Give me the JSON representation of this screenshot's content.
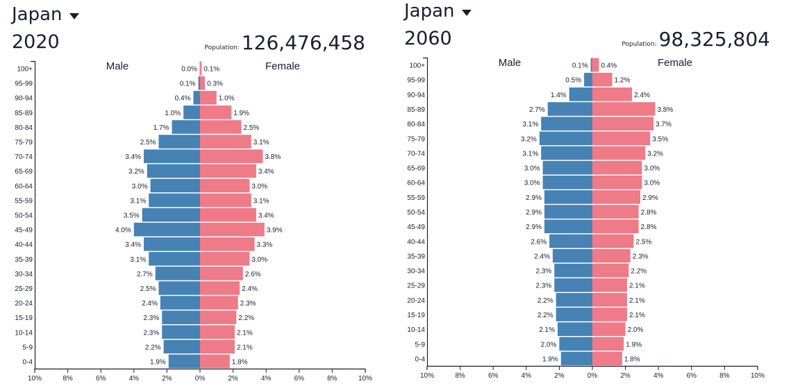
{
  "colors": {
    "male": "#4682b4",
    "female": "#ef7a88",
    "text": "#1b1d33",
    "axis": "#1b1d33"
  },
  "panels": [
    {
      "country": "Japan",
      "year": "2020",
      "population_label": "Population:",
      "population_value": "126,476,458",
      "male_label": "Male",
      "female_label": "Female"
    },
    {
      "country": "Japan",
      "year": "2060",
      "population_label": "Population:",
      "population_value": "98,325,804",
      "male_label": "Male",
      "female_label": "Female"
    }
  ],
  "chart_data": [
    {
      "type": "bar",
      "title": "Japan 2020",
      "subtitle": "Population: 126,476,458",
      "orientation": "horizontal-diverging",
      "categories": [
        "100+",
        "95-99",
        "90-94",
        "85-89",
        "80-84",
        "75-79",
        "70-74",
        "65-69",
        "60-64",
        "55-59",
        "50-54",
        "45-49",
        "40-44",
        "35-39",
        "30-34",
        "25-29",
        "20-24",
        "15-19",
        "10-14",
        "5-9",
        "0-4"
      ],
      "series": [
        {
          "name": "Male",
          "values": [
            0.0,
            0.1,
            0.4,
            1.0,
            1.7,
            2.5,
            3.4,
            3.2,
            3.0,
            3.1,
            3.5,
            4.0,
            3.4,
            3.1,
            2.7,
            2.5,
            2.4,
            2.3,
            2.3,
            2.2,
            1.9
          ],
          "labels": [
            "0.0%",
            "0.1%",
            "0.4%",
            "1.0%",
            "1.7%",
            "2.5%",
            "3.4%",
            "3.2%",
            "3.0%",
            "3.1%",
            "3.5%",
            "4.0%",
            "3.4%",
            "3.1%",
            "2.7%",
            "2.5%",
            "2.4%",
            "2.3%",
            "2.3%",
            "2.2%",
            "1.9%"
          ]
        },
        {
          "name": "Female",
          "values": [
            0.1,
            0.3,
            1.0,
            1.9,
            2.5,
            3.1,
            3.8,
            3.4,
            3.0,
            3.1,
            3.4,
            3.9,
            3.3,
            3.0,
            2.6,
            2.4,
            2.3,
            2.2,
            2.1,
            2.1,
            1.8
          ],
          "labels": [
            "0.1%",
            "0.3%",
            "1.0%",
            "1.9%",
            "2.5%",
            "3.1%",
            "3.8%",
            "3.4%",
            "3.0%",
            "3.1%",
            "3.4%",
            "3.9%",
            "3.3%",
            "3.0%",
            "2.6%",
            "2.4%",
            "2.3%",
            "2.2%",
            "2.1%",
            "2.1%",
            "1.8%"
          ]
        }
      ],
      "xlabel": "",
      "ylabel": "",
      "xlim": [
        -10,
        10
      ],
      "xticks": [
        -10,
        -8,
        -6,
        -4,
        -2,
        0,
        2,
        4,
        6,
        8,
        10
      ],
      "xtick_labels": [
        "10%",
        "8%",
        "6%",
        "4%",
        "2%",
        "0%",
        "2%",
        "4%",
        "6%",
        "8%",
        "10%"
      ],
      "grid": false,
      "legend": "top (Male left, Female right)"
    },
    {
      "type": "bar",
      "title": "Japan 2060",
      "subtitle": "Population: 98,325,804",
      "orientation": "horizontal-diverging",
      "categories": [
        "100+",
        "95-99",
        "90-94",
        "85-89",
        "80-84",
        "75-79",
        "70-74",
        "65-69",
        "60-64",
        "55-59",
        "50-54",
        "45-49",
        "40-44",
        "35-39",
        "30-34",
        "25-29",
        "20-24",
        "15-19",
        "10-14",
        "5-9",
        "0-4"
      ],
      "series": [
        {
          "name": "Male",
          "values": [
            0.1,
            0.5,
            1.4,
            2.7,
            3.1,
            3.2,
            3.1,
            3.0,
            3.0,
            2.9,
            2.9,
            2.9,
            2.6,
            2.4,
            2.3,
            2.3,
            2.2,
            2.2,
            2.1,
            2.0,
            1.9
          ],
          "labels": [
            "0.1%",
            "0.5%",
            "1.4%",
            "2.7%",
            "3.1%",
            "3.2%",
            "3.1%",
            "3.0%",
            "3.0%",
            "2.9%",
            "2.9%",
            "2.9%",
            "2.6%",
            "2.4%",
            "2.3%",
            "2.3%",
            "2.2%",
            "2.2%",
            "2.1%",
            "2.0%",
            "1.9%"
          ]
        },
        {
          "name": "Female",
          "values": [
            0.4,
            1.2,
            2.4,
            3.8,
            3.7,
            3.5,
            3.2,
            3.0,
            3.0,
            2.9,
            2.8,
            2.8,
            2.5,
            2.3,
            2.2,
            2.1,
            2.1,
            2.1,
            2.0,
            1.9,
            1.8
          ],
          "labels": [
            "0.4%",
            "1.2%",
            "2.4%",
            "3.8%",
            "3.7%",
            "3.5%",
            "3.2%",
            "3.0%",
            "3.0%",
            "2.9%",
            "2.8%",
            "2.8%",
            "2.5%",
            "2.3%",
            "2.2%",
            "2.1%",
            "2.1%",
            "2.1%",
            "2.0%",
            "1.9%",
            "1.8%"
          ]
        }
      ],
      "xlabel": "",
      "ylabel": "",
      "xlim": [
        -10,
        10
      ],
      "xticks": [
        -10,
        -8,
        -6,
        -4,
        -2,
        0,
        2,
        4,
        6,
        8,
        10
      ],
      "xtick_labels": [
        "10%",
        "8%",
        "6%",
        "4%",
        "2%",
        "0%",
        "2%",
        "4%",
        "6%",
        "8%",
        "10%"
      ],
      "grid": false,
      "legend": "top (Male left, Female right)"
    }
  ]
}
